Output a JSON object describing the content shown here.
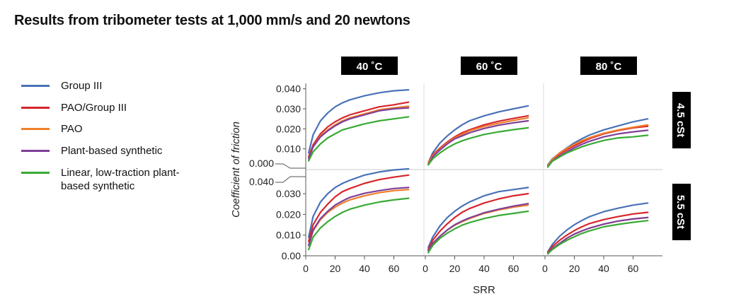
{
  "title": "Results from tribometer tests at 1,000 mm/s and 20 newtons",
  "chart_data": {
    "type": "line",
    "xlabel": "SRR",
    "ylabel": "Coefficient of friction",
    "x": [
      2,
      5,
      10,
      15,
      20,
      25,
      30,
      40,
      50,
      60,
      70
    ],
    "xticks": [
      0,
      20,
      40,
      60
    ],
    "xlim": [
      0,
      80
    ],
    "ylim": [
      0,
      0.042
    ],
    "yticks_top": [
      "0.000",
      "0.010",
      "0.020",
      "0.030",
      "0.040"
    ],
    "yticks_bottom": [
      "0.00",
      "0.010",
      "0.020",
      "0.030",
      "0.040"
    ],
    "columns": [
      "40 ˚C",
      "60 ˚C",
      "80 ˚C"
    ],
    "rows": [
      "4.5 cSt",
      "5.5 cSt"
    ],
    "legend_position": "left",
    "series_meta": [
      {
        "name": "Group III",
        "color": "#4a72b8"
      },
      {
        "name": "PAO/Group III",
        "color": "#d7262b"
      },
      {
        "name": "PAO",
        "color": "#f07f2b"
      },
      {
        "name": "Plant-based synthetic",
        "color": "#7f3f98"
      },
      {
        "name": "Linear, low-traction plant-based synthetic",
        "color": "#3aaa35"
      }
    ],
    "panels": [
      {
        "row": "4.5 cSt",
        "column": "40 ˚C",
        "series": [
          {
            "name": "Group III",
            "values": [
              0.008,
              0.017,
              0.024,
              0.028,
              0.031,
              0.033,
              0.0345,
              0.0365,
              0.038,
              0.039,
              0.0395
            ]
          },
          {
            "name": "PAO/Group III",
            "values": [
              0.006,
              0.012,
              0.0175,
              0.021,
              0.0235,
              0.0255,
              0.027,
              0.029,
              0.031,
              0.032,
              0.0333
            ]
          },
          {
            "name": "PAO",
            "values": [
              0.005,
              0.011,
              0.0165,
              0.0195,
              0.022,
              0.024,
              0.0255,
              0.0275,
              0.0295,
              0.0305,
              0.0313
            ]
          },
          {
            "name": "Plant-based synthetic",
            "values": [
              0.005,
              0.011,
              0.016,
              0.019,
              0.0215,
              0.0235,
              0.025,
              0.027,
              0.029,
              0.03,
              0.0305
            ]
          },
          {
            "name": "Linear, low-traction plant-based synthetic",
            "values": [
              0.004,
              0.0085,
              0.0125,
              0.0155,
              0.0175,
              0.0195,
              0.0205,
              0.0225,
              0.024,
              0.025,
              0.026
            ]
          }
        ]
      },
      {
        "row": "4.5 cSt",
        "column": "60 ˚C",
        "series": [
          {
            "name": "Group III",
            "values": [
              0.003,
              0.008,
              0.013,
              0.0165,
              0.0195,
              0.022,
              0.024,
              0.0265,
              0.0285,
              0.03,
              0.0315
            ]
          },
          {
            "name": "PAO/Group III",
            "values": [
              0.003,
              0.007,
              0.0105,
              0.0135,
              0.016,
              0.018,
              0.0195,
              0.022,
              0.0238,
              0.0252,
              0.0265
            ]
          },
          {
            "name": "PAO",
            "values": [
              0.003,
              0.0065,
              0.01,
              0.013,
              0.0155,
              0.0172,
              0.019,
              0.0212,
              0.0228,
              0.0242,
              0.0255
            ]
          },
          {
            "name": "Plant-based synthetic",
            "values": [
              0.002,
              0.006,
              0.0095,
              0.0125,
              0.015,
              0.0165,
              0.018,
              0.0202,
              0.0218,
              0.023,
              0.024
            ]
          },
          {
            "name": "Linear, low-traction plant-based synthetic",
            "values": [
              0.002,
              0.005,
              0.008,
              0.0105,
              0.0125,
              0.014,
              0.0152,
              0.0172,
              0.0185,
              0.0196,
              0.0205
            ]
          }
        ]
      },
      {
        "row": "4.5 cSt",
        "column": "80 ˚C",
        "series": [
          {
            "name": "Group III",
            "values": [
              0.002,
              0.005,
              0.008,
              0.0105,
              0.013,
              0.015,
              0.0168,
              0.0195,
              0.0215,
              0.0235,
              0.025
            ]
          },
          {
            "name": "PAO/Group III",
            "values": [
              0.0015,
              0.0045,
              0.0075,
              0.0095,
              0.0115,
              0.0133,
              0.015,
              0.0175,
              0.0192,
              0.0205,
              0.0213
            ]
          },
          {
            "name": "PAO",
            "values": [
              0.0015,
              0.0048,
              0.008,
              0.0102,
              0.0122,
              0.014,
              0.0155,
              0.0178,
              0.0195,
              0.0208,
              0.022
            ]
          },
          {
            "name": "Plant-based synthetic",
            "values": [
              0.001,
              0.004,
              0.0065,
              0.0085,
              0.0105,
              0.0122,
              0.0137,
              0.016,
              0.0175,
              0.0185,
              0.0193
            ]
          },
          {
            "name": "Linear, low-traction plant-based synthetic",
            "values": [
              0.001,
              0.0038,
              0.006,
              0.008,
              0.0095,
              0.011,
              0.0122,
              0.0142,
              0.0155,
              0.016,
              0.0168
            ]
          }
        ]
      },
      {
        "row": "5.5 cSt",
        "column": "40 ˚C",
        "series": [
          {
            "name": "Group III",
            "values": [
              0.009,
              0.019,
              0.026,
              0.03,
              0.033,
              0.035,
              0.0365,
              0.039,
              0.0405,
              0.0415,
              0.042
            ]
          },
          {
            "name": "PAO/Group III",
            "values": [
              0.007,
              0.015,
              0.021,
              0.025,
              0.0285,
              0.031,
              0.0325,
              0.035,
              0.0368,
              0.038,
              0.039
            ]
          },
          {
            "name": "PAO",
            "values": [
              0.005,
              0.012,
              0.0175,
              0.021,
              0.0235,
              0.0255,
              0.027,
              0.029,
              0.0305,
              0.0315,
              0.032
            ]
          },
          {
            "name": "Plant-based synthetic",
            "values": [
              0.005,
              0.0125,
              0.018,
              0.0215,
              0.0245,
              0.0265,
              0.0282,
              0.0302,
              0.0315,
              0.0325,
              0.033
            ]
          },
          {
            "name": "Linear, low-traction plant-based synthetic",
            "values": [
              0.003,
              0.009,
              0.0135,
              0.0165,
              0.019,
              0.021,
              0.0225,
              0.0245,
              0.026,
              0.027,
              0.0278
            ]
          }
        ]
      },
      {
        "row": "5.5 cSt",
        "column": "60 ˚C",
        "series": [
          {
            "name": "Group III",
            "values": [
              0.004,
              0.009,
              0.0145,
              0.0185,
              0.0215,
              0.024,
              0.026,
              0.029,
              0.031,
              0.032,
              0.033
            ]
          },
          {
            "name": "PAO/Group III",
            "values": [
              0.003,
              0.0075,
              0.012,
              0.0155,
              0.0185,
              0.021,
              0.0228,
              0.0255,
              0.0275,
              0.029,
              0.03
            ]
          },
          {
            "name": "PAO",
            "values": [
              0.0025,
              0.006,
              0.0095,
              0.0125,
              0.0148,
              0.0165,
              0.018,
              0.0205,
              0.0222,
              0.0235,
              0.0245
            ]
          },
          {
            "name": "Plant-based synthetic",
            "values": [
              0.0025,
              0.006,
              0.0095,
              0.0125,
              0.015,
              0.0168,
              0.0183,
              0.0208,
              0.0225,
              0.024,
              0.0252
            ]
          },
          {
            "name": "Linear, low-traction plant-based synthetic",
            "values": [
              0.0015,
              0.005,
              0.0085,
              0.011,
              0.013,
              0.0148,
              0.016,
              0.018,
              0.0195,
              0.0205,
              0.0215
            ]
          }
        ]
      },
      {
        "row": "5.5 cSt",
        "column": "80 ˚C",
        "series": [
          {
            "name": "Group III",
            "values": [
              0.002,
              0.0055,
              0.0095,
              0.0125,
              0.015,
              0.017,
              0.0188,
              0.0213,
              0.023,
              0.0245,
              0.0255
            ]
          },
          {
            "name": "PAO/Group III",
            "values": [
              0.0015,
              0.0045,
              0.0075,
              0.01,
              0.0122,
              0.014,
              0.0155,
              0.0175,
              0.019,
              0.0202,
              0.021
            ]
          },
          {
            "name": "PAO",
            "values": [
              0.001,
              0.0035,
              0.006,
              0.0085,
              0.0105,
              0.012,
              0.0133,
              0.0153,
              0.0168,
              0.0178,
              0.0185
            ]
          },
          {
            "name": "Plant-based synthetic",
            "values": [
              0.001,
              0.0035,
              0.006,
              0.0085,
              0.0105,
              0.012,
              0.0133,
              0.0153,
              0.0168,
              0.0178,
              0.0185
            ]
          },
          {
            "name": "Linear, low-traction plant-based synthetic",
            "values": [
              0.001,
              0.003,
              0.0055,
              0.0075,
              0.0092,
              0.0108,
              0.012,
              0.014,
              0.0152,
              0.0162,
              0.017
            ]
          }
        ]
      }
    ]
  }
}
